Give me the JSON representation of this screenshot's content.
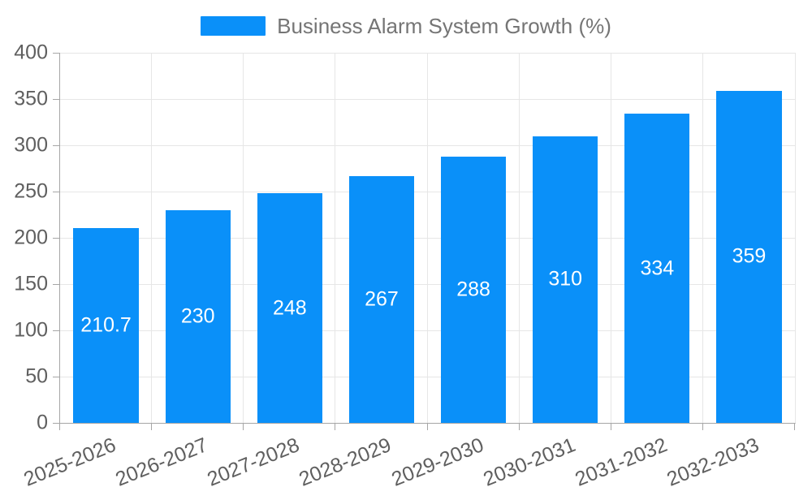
{
  "chart_data": {
    "type": "bar",
    "title": "Business Alarm System Growth (%)",
    "categories": [
      "2025-2026",
      "2026-2027",
      "2027-2028",
      "2028-2029",
      "2029-2030",
      "2030-2031",
      "2031-2032",
      "2032-2033"
    ],
    "series": [
      {
        "name": "Business Alarm System Growth (%)",
        "values": [
          210.7,
          230,
          248,
          267,
          288,
          310,
          334,
          359
        ]
      }
    ],
    "value_labels": [
      "210.7",
      "230",
      "248",
      "267",
      "288",
      "310",
      "334",
      "359"
    ],
    "xlabel": "",
    "ylabel": "",
    "ylim": [
      0,
      400
    ],
    "ytick_step": 50,
    "ytick_labels": [
      "0",
      "50",
      "100",
      "150",
      "200",
      "250",
      "300",
      "350",
      "400"
    ],
    "grid": true,
    "legend_position": "top-center",
    "x_label_rotation_deg": -22,
    "bar_labels_position": "inside-center",
    "colors": {
      "bar": "#0a90f9",
      "bar_label_text": "#ffffff",
      "axis_line": "#a6a6a6",
      "grid_line": "#e6e6e6",
      "tick_label": "#5f5f5f",
      "legend_text": "#757575",
      "background": "#ffffff"
    }
  }
}
